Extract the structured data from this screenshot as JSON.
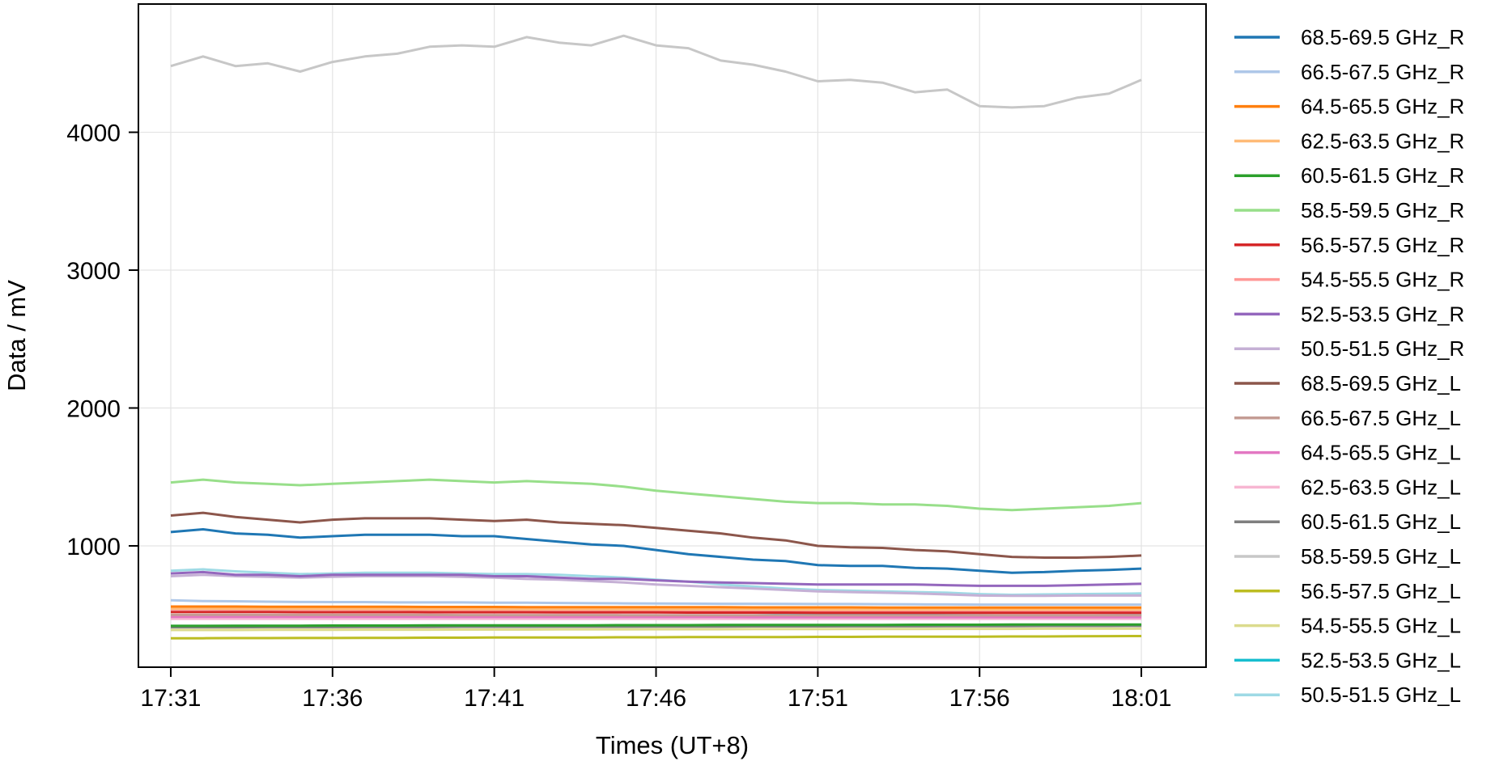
{
  "chart_data": {
    "type": "line",
    "xlabel": "Times (UT+8)",
    "ylabel": "Data / mV",
    "x_ticks": [
      "17:31",
      "17:36",
      "17:41",
      "17:46",
      "17:51",
      "17:56",
      "18:01"
    ],
    "x_range": [
      "17:30",
      "18:03"
    ],
    "y_ticks": [
      1000,
      2000,
      3000,
      4000
    ],
    "ylim": [
      120,
      4930
    ],
    "grid": true,
    "legend_position": "outside-right",
    "x": [
      "17:31",
      "17:32",
      "17:33",
      "17:34",
      "17:35",
      "17:36",
      "17:37",
      "17:38",
      "17:39",
      "17:40",
      "17:41",
      "17:42",
      "17:43",
      "17:44",
      "17:45",
      "17:46",
      "17:47",
      "17:48",
      "17:49",
      "17:50",
      "17:51",
      "17:52",
      "17:53",
      "17:54",
      "17:55",
      "17:56",
      "17:57",
      "17:58",
      "17:59",
      "18:00",
      "18:01"
    ],
    "series": [
      {
        "name": "68.5-69.5 GHz_R",
        "color": "#1f77b4",
        "values": [
          1100,
          1120,
          1090,
          1080,
          1060,
          1070,
          1080,
          1080,
          1080,
          1070,
          1070,
          1050,
          1030,
          1010,
          1000,
          970,
          940,
          920,
          900,
          890,
          860,
          855,
          855,
          840,
          835,
          820,
          805,
          810,
          820,
          825,
          835
        ]
      },
      {
        "name": "66.5-67.5 GHz_R",
        "color": "#aec7e8",
        "values": [
          605,
          600,
          598,
          595,
          593,
          592,
          592,
          590,
          590,
          590,
          588,
          588,
          586,
          584,
          583,
          582,
          581,
          580,
          580,
          579,
          578,
          578,
          577,
          576,
          575,
          574,
          574,
          574,
          574,
          574,
          574
        ]
      },
      {
        "name": "64.5-65.5 GHz_R",
        "color": "#ff7f0e",
        "values": [
          560,
          560,
          560,
          559,
          559,
          558,
          558,
          558,
          557,
          557,
          557,
          556,
          556,
          556,
          555,
          555,
          555,
          555,
          554,
          554,
          554,
          554,
          553,
          553,
          553,
          553,
          553,
          553,
          553,
          553,
          553
        ]
      },
      {
        "name": "62.5-63.5 GHz_R",
        "color": "#ffbb78",
        "values": [
          545,
          545,
          544,
          544,
          544,
          543,
          543,
          543,
          542,
          542,
          542,
          541,
          541,
          541,
          540,
          540,
          540,
          540,
          540,
          539,
          539,
          539,
          539,
          539,
          539,
          539,
          539,
          539,
          539,
          539,
          539
        ]
      },
      {
        "name": "60.5-61.5 GHz_R",
        "color": "#2ca02c",
        "values": [
          420,
          420,
          421,
          421,
          421,
          422,
          422,
          422,
          423,
          423,
          423,
          424,
          424,
          424,
          425,
          425,
          425,
          426,
          426,
          426,
          427,
          427,
          427,
          428,
          428,
          428,
          429,
          429,
          429,
          430,
          430
        ]
      },
      {
        "name": "58.5-59.5 GHz_R",
        "color": "#98df8a",
        "values": [
          1460,
          1480,
          1460,
          1450,
          1440,
          1450,
          1460,
          1470,
          1480,
          1470,
          1460,
          1470,
          1460,
          1450,
          1430,
          1400,
          1380,
          1360,
          1340,
          1320,
          1310,
          1310,
          1300,
          1300,
          1290,
          1270,
          1260,
          1270,
          1280,
          1290,
          1310
        ]
      },
      {
        "name": "56.5-57.5 GHz_R",
        "color": "#d62728",
        "values": [
          520,
          520,
          520,
          520,
          519,
          519,
          519,
          519,
          518,
          518,
          518,
          518,
          517,
          517,
          517,
          517,
          516,
          516,
          516,
          516,
          515,
          515,
          515,
          515,
          514,
          514,
          514,
          514,
          514,
          514,
          514
        ]
      },
      {
        "name": "54.5-55.5 GHz_R",
        "color": "#ff9896",
        "values": [
          540,
          540,
          539,
          539,
          538,
          538,
          537,
          537,
          536,
          536,
          535,
          535,
          534,
          534,
          533,
          533,
          532,
          532,
          531,
          531,
          530,
          530,
          529,
          529,
          528,
          528,
          527,
          527,
          527,
          527,
          527
        ]
      },
      {
        "name": "52.5-53.5 GHz_R",
        "color": "#9467bd",
        "values": [
          800,
          810,
          790,
          790,
          780,
          790,
          790,
          790,
          790,
          790,
          780,
          780,
          770,
          760,
          760,
          750,
          740,
          735,
          730,
          725,
          720,
          720,
          720,
          720,
          715,
          710,
          710,
          710,
          715,
          720,
          725
        ]
      },
      {
        "name": "50.5-51.5 GHz_R",
        "color": "#c5b0d5",
        "values": [
          780,
          790,
          780,
          775,
          770,
          775,
          780,
          780,
          780,
          775,
          770,
          760,
          755,
          745,
          735,
          720,
          710,
          700,
          690,
          680,
          670,
          665,
          660,
          655,
          648,
          640,
          638,
          638,
          640,
          640,
          640
        ]
      },
      {
        "name": "68.5-69.5 GHz_L",
        "color": "#8c564b",
        "values": [
          1220,
          1240,
          1210,
          1190,
          1170,
          1190,
          1200,
          1200,
          1200,
          1190,
          1180,
          1190,
          1170,
          1160,
          1150,
          1130,
          1110,
          1090,
          1060,
          1040,
          1000,
          990,
          985,
          970,
          960,
          940,
          920,
          915,
          915,
          920,
          930
        ]
      },
      {
        "name": "66.5-67.5 GHz_L",
        "color": "#c49c94",
        "values": [
          500,
          500,
          500,
          500,
          499,
          499,
          499,
          499,
          499,
          498,
          498,
          498,
          498,
          498,
          497,
          497,
          497,
          497,
          497,
          497,
          496,
          496,
          496,
          496,
          496,
          496,
          496,
          496,
          496,
          496,
          496
        ]
      },
      {
        "name": "64.5-65.5 GHz_L",
        "color": "#e377c2",
        "values": [
          485,
          485,
          485,
          485,
          485,
          485,
          485,
          485,
          485,
          484,
          484,
          484,
          484,
          484,
          484,
          484,
          484,
          484,
          483,
          483,
          483,
          483,
          483,
          483,
          483,
          483,
          483,
          483,
          483,
          483,
          483
        ]
      },
      {
        "name": "62.5-63.5 GHz_L",
        "color": "#f7b6d2",
        "values": [
          470,
          470,
          470,
          470,
          470,
          470,
          470,
          470,
          470,
          470,
          470,
          470,
          470,
          470,
          470,
          470,
          470,
          470,
          470,
          470,
          470,
          470,
          470,
          470,
          470,
          470,
          470,
          470,
          470,
          470,
          470
        ]
      },
      {
        "name": "60.5-61.5 GHz_L",
        "color": "#7f7f7f",
        "values": [
          410,
          410,
          410,
          411,
          411,
          411,
          412,
          412,
          412,
          413,
          413,
          413,
          414,
          414,
          414,
          415,
          415,
          415,
          416,
          416,
          416,
          417,
          417,
          417,
          418,
          418,
          418,
          419,
          419,
          419,
          420
        ]
      },
      {
        "name": "58.5-59.5 GHz_L",
        "color": "#c7c7c7",
        "values": [
          4480,
          4550,
          4480,
          4500,
          4440,
          4510,
          4550,
          4570,
          4620,
          4630,
          4620,
          4690,
          4650,
          4630,
          4700,
          4630,
          4610,
          4520,
          4490,
          4440,
          4370,
          4380,
          4360,
          4290,
          4310,
          4190,
          4180,
          4190,
          4250,
          4280,
          4380
        ]
      },
      {
        "name": "56.5-57.5 GHz_L",
        "color": "#bcbd22",
        "values": [
          330,
          330,
          331,
          331,
          332,
          332,
          333,
          333,
          334,
          334,
          335,
          335,
          336,
          336,
          337,
          337,
          338,
          338,
          339,
          339,
          340,
          340,
          341,
          341,
          342,
          342,
          343,
          343,
          344,
          345,
          346
        ]
      },
      {
        "name": "54.5-55.5 GHz_L",
        "color": "#dbdb8d",
        "values": [
          390,
          390,
          390,
          391,
          391,
          391,
          392,
          392,
          392,
          393,
          393,
          393,
          394,
          394,
          394,
          395,
          395,
          395,
          396,
          396,
          396,
          397,
          397,
          397,
          398,
          398,
          398,
          399,
          399,
          399,
          400
        ]
      },
      {
        "name": "52.5-53.5 GHz_L",
        "color": "#17becf",
        "values": [
          560,
          560,
          555,
          555,
          550,
          548,
          546,
          545,
          544,
          543,
          542,
          540,
          538,
          536,
          534,
          530,
          525,
          520,
          516,
          512,
          508,
          505,
          503,
          500,
          498,
          496,
          495,
          495,
          495,
          496,
          497
        ]
      },
      {
        "name": "50.5-51.5 GHz_L",
        "color": "#9edae5",
        "values": [
          820,
          830,
          815,
          805,
          795,
          800,
          805,
          805,
          805,
          800,
          795,
          795,
          790,
          780,
          770,
          755,
          740,
          720,
          705,
          690,
          680,
          675,
          670,
          665,
          660,
          650,
          645,
          648,
          650,
          652,
          655
        ]
      }
    ]
  }
}
